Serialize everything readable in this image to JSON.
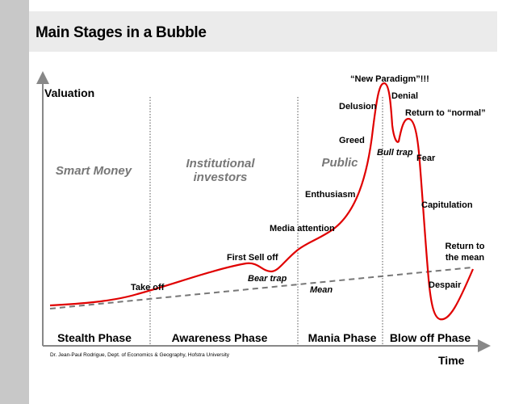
{
  "title": "Main Stages in a Bubble",
  "axis": {
    "y_label": "Valuation",
    "x_label": "Time"
  },
  "colors": {
    "curve": "#e00000",
    "mean_line": "#777777",
    "axis": "#888888",
    "group_text": "#777777"
  },
  "groups": [
    {
      "label_lines": [
        "Smart Money"
      ]
    },
    {
      "label_lines": [
        "Institutional",
        "investors"
      ]
    },
    {
      "label_lines": [
        "Public"
      ]
    }
  ],
  "phases": [
    "Stealth Phase",
    "Awareness Phase",
    "Mania Phase",
    "Blow off Phase"
  ],
  "annotations": {
    "take_off": "Take off",
    "first_sell_off": "First Sell off",
    "bear_trap": "Bear trap",
    "media_attention": "Media attention",
    "enthusiasm": "Enthusiasm",
    "greed": "Greed",
    "delusion": "Delusion",
    "new_paradigm": "“New Paradigm”!!!",
    "denial": "Denial",
    "bull_trap": "Bull trap",
    "return_to_normal": "Return to “normal”",
    "fear": "Fear",
    "capitulation": "Capitulation",
    "despair": "Despair",
    "return_to_mean_line1": "Return to",
    "return_to_mean_line2": "the mean",
    "mean": "Mean"
  },
  "credit": "Dr. Jean-Paul Rodrigue, Dept. of Economics & Geography, Hofstra University"
}
